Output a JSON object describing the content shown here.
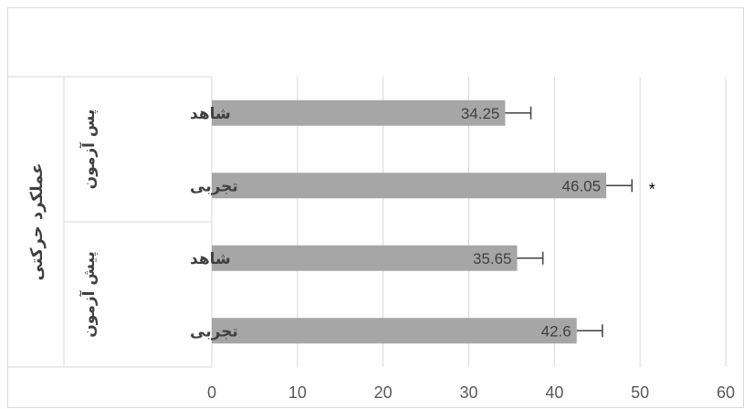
{
  "chart_data": {
    "type": "bar",
    "orientation": "horizontal",
    "axis_title": "عملکرد حرکتی",
    "groups": [
      {
        "label": "پس آزمون",
        "items": [
          {
            "category": "شاهد",
            "value": 34.25,
            "value_label": "34.25",
            "error": 3.0,
            "significance": ""
          },
          {
            "category": "تجربی",
            "value": 46.05,
            "value_label": "46.05",
            "error": 3.0,
            "significance": "*"
          }
        ]
      },
      {
        "label": "پیش آزمون",
        "items": [
          {
            "category": "شاهد",
            "value": 35.65,
            "value_label": "35.65",
            "error": 3.0,
            "significance": ""
          },
          {
            "category": "تجربی",
            "value": 42.6,
            "value_label": "42.6",
            "error": 3.0,
            "significance": ""
          }
        ]
      }
    ],
    "xlim": [
      0,
      60
    ],
    "xticks": [
      0,
      10,
      20,
      30,
      40,
      50,
      60
    ],
    "grid": true,
    "bar_color": "#a6a6a6",
    "gridline_color": "#d9d9d9",
    "axis_line_color": "#d9d9d9"
  }
}
